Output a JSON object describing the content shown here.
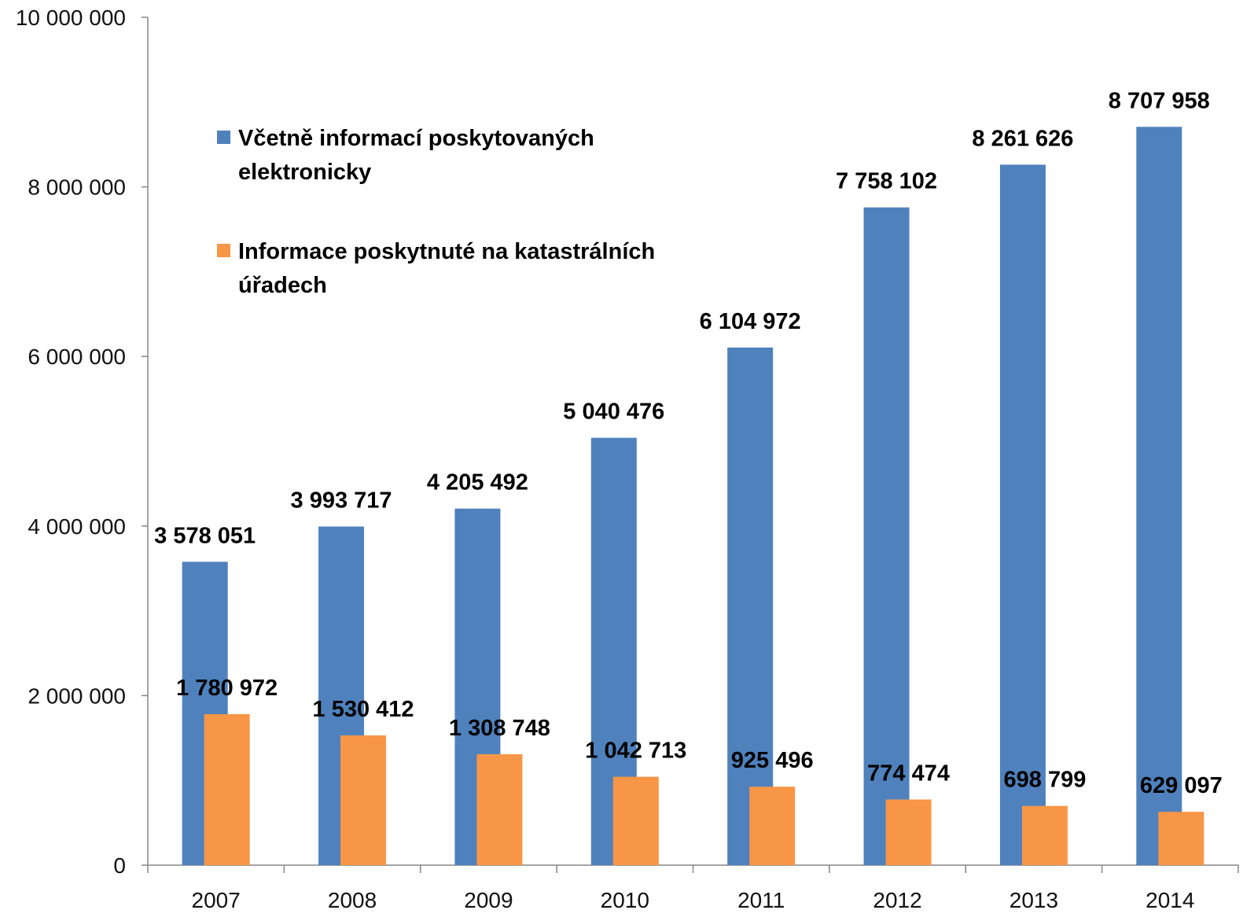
{
  "chart_data": {
    "type": "bar",
    "categories": [
      "2007",
      "2008",
      "2009",
      "2010",
      "2011",
      "2012",
      "2013",
      "2014"
    ],
    "series": [
      {
        "name": "Včetně informací poskytovaných elektronicky",
        "name_lines": [
          "Včetně informací poskytovaných",
          "elektronicky"
        ],
        "color": "#4F81BD",
        "values": [
          3578051,
          3993717,
          4205492,
          5040476,
          6104972,
          7758102,
          8261626,
          8707958
        ],
        "labels": [
          "3 578 051",
          "3 993 717",
          "4 205 492",
          "5 040 476",
          "6 104 972",
          "7 758 102",
          "8 261 626",
          "8 707 958"
        ]
      },
      {
        "name": "Informace poskytnuté na katastrálních úřadech",
        "name_lines": [
          "Informace poskytnuté na katastrálních",
          "úřadech"
        ],
        "color": "#F79646",
        "values": [
          1780972,
          1530412,
          1308748,
          1042713,
          925496,
          774474,
          698799,
          629097
        ],
        "labels": [
          "1 780 972",
          "1 530 412",
          "1 308 748",
          "1 042 713",
          "925 496",
          "774 474",
          "698 799",
          "629 097"
        ]
      }
    ],
    "ylim": [
      0,
      10000000
    ],
    "yticks": [
      0,
      2000000,
      4000000,
      6000000,
      8000000,
      10000000
    ],
    "ytick_labels": [
      "0",
      "2 000 000",
      "4 000 000",
      "6 000 000",
      "8 000 000",
      "10 000 000"
    ],
    "title": "",
    "xlabel": "",
    "ylabel": "",
    "grid": false,
    "legend_position": "top-left"
  }
}
